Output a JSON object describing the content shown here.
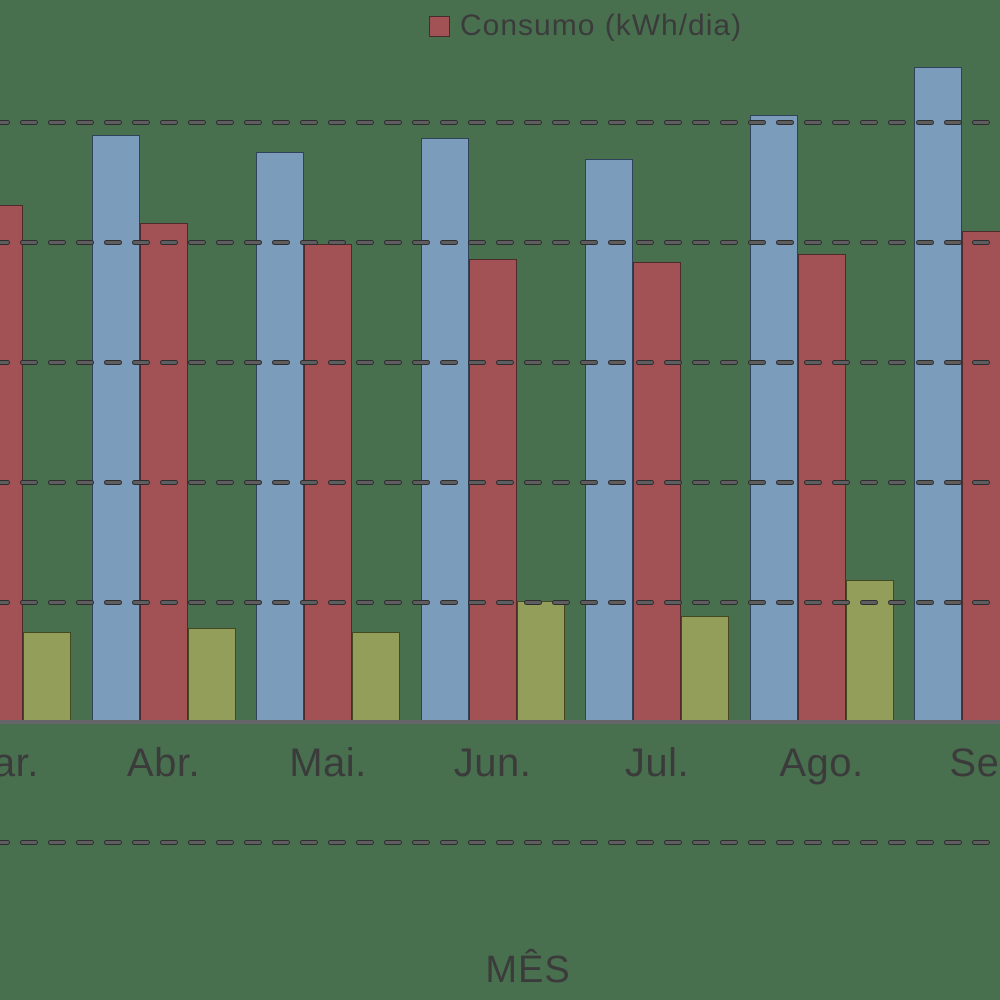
{
  "chart_data": {
    "type": "bar",
    "title": "",
    "xlabel": "MÊS",
    "grid": "horizontal-dashed",
    "legend": {
      "position": "top-center",
      "visible_entries": [
        {
          "label": "Consumo (kWh/dia)",
          "swatch_color": "#A25154"
        }
      ]
    },
    "categories": [
      "Mar.",
      "Abr.",
      "Mai.",
      "Jun.",
      "Jul.",
      "Ago.",
      "Set."
    ],
    "y_axis": {
      "tick_labels_visible": false,
      "baseline_unit": 0,
      "gridline_units": [
        5,
        4,
        3,
        2,
        1,
        -1
      ],
      "value_unit": "gridline-spacing (eixo cortado, sem rótulos visíveis)"
    },
    "series": [
      {
        "id": "azul",
        "legend_label": null,
        "color": "#7B9CBA",
        "border_color": "#2E4259",
        "values": [
          null,
          4.89,
          4.75,
          4.87,
          4.69,
          5.06,
          5.46
        ]
      },
      {
        "id": "vermelho",
        "legend_label": "Consumo (kWh/dia)",
        "color": "#A25154",
        "border_color": "#4F2A2C",
        "values": [
          4.31,
          4.16,
          3.98,
          3.86,
          3.83,
          3.9,
          4.09
        ]
      },
      {
        "id": "verde-oliva",
        "legend_label": null,
        "color": "#949E5B",
        "border_color": "#44491F",
        "values": [
          0.75,
          0.78,
          0.75,
          1.01,
          0.88,
          1.18,
          null
        ]
      }
    ]
  },
  "colors": {
    "background": "#48704F",
    "axis_line": "#66666A",
    "gridline_dash": "#5E5E60",
    "text": "#3B3B3B"
  }
}
